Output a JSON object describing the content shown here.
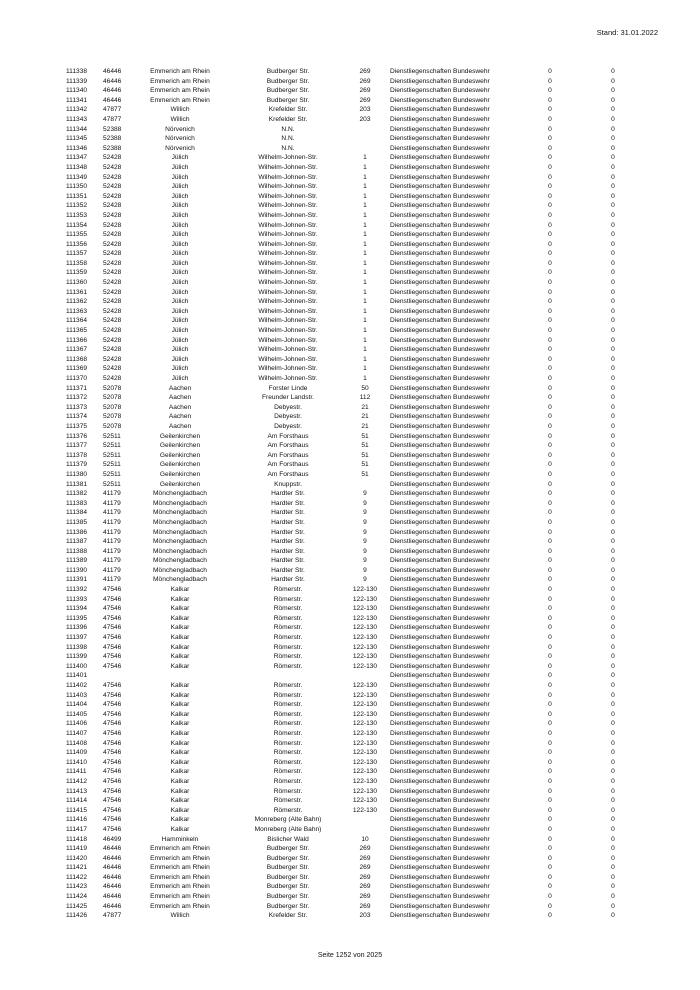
{
  "header": {
    "stand": "Stand: 31.01.2022"
  },
  "footer": {
    "page": "Seite 1252 von 2025"
  },
  "rows": [
    [
      "111338",
      "46446",
      "Emmerich am Rhein",
      "Budberger  Str.",
      "269",
      "Dienstliegenschaften Bundeswehr",
      "0",
      "0"
    ],
    [
      "111339",
      "46446",
      "Emmerich am Rhein",
      "Budberger  Str.",
      "269",
      "Dienstliegenschaften Bundeswehr",
      "0",
      "0"
    ],
    [
      "111340",
      "46446",
      "Emmerich am Rhein",
      "Budberger  Str.",
      "269",
      "Dienstliegenschaften Bundeswehr",
      "0",
      "0"
    ],
    [
      "111341",
      "46446",
      "Emmerich am Rhein",
      "Budberger  Str.",
      "269",
      "Dienstliegenschaften Bundeswehr",
      "0",
      "0"
    ],
    [
      "111342",
      "47877",
      "Willich",
      "Krefelder Str.",
      "203",
      "Dienstliegenschaften Bundeswehr",
      "0",
      "0"
    ],
    [
      "111343",
      "47877",
      "Willich",
      "Krefelder Str.",
      "203",
      "Dienstliegenschaften Bundeswehr",
      "0",
      "0"
    ],
    [
      "111344",
      "52388",
      "Nörvenich",
      "N.N.",
      "",
      "Dienstliegenschaften Bundeswehr",
      "0",
      "0"
    ],
    [
      "111345",
      "52388",
      "Nörvenich",
      "N.N.",
      "",
      "Dienstliegenschaften Bundeswehr",
      "0",
      "0"
    ],
    [
      "111346",
      "52388",
      "Nörvenich",
      "N.N.",
      "",
      "Dienstliegenschaften Bundeswehr",
      "0",
      "0"
    ],
    [
      "111347",
      "52428",
      "Jülich",
      "Wilhelm-Johnen-Str.",
      "1",
      "Dienstliegenschaften Bundeswehr",
      "0",
      "0"
    ],
    [
      "111348",
      "52428",
      "Jülich",
      "Wilhelm-Johnen-Str.",
      "1",
      "Dienstliegenschaften Bundeswehr",
      "0",
      "0"
    ],
    [
      "111349",
      "52428",
      "Jülich",
      "Wilhelm-Johnen-Str.",
      "1",
      "Dienstliegenschaften Bundeswehr",
      "0",
      "0"
    ],
    [
      "111350",
      "52428",
      "Jülich",
      "Wilhelm-Johnen-Str.",
      "1",
      "Dienstliegenschaften Bundeswehr",
      "0",
      "0"
    ],
    [
      "111351",
      "52428",
      "Jülich",
      "Wilhelm-Johnen-Str.",
      "1",
      "Dienstliegenschaften Bundeswehr",
      "0",
      "0"
    ],
    [
      "111352",
      "52428",
      "Jülich",
      "Wilhelm-Johnen-Str.",
      "1",
      "Dienstliegenschaften Bundeswehr",
      "0",
      "0"
    ],
    [
      "111353",
      "52428",
      "Jülich",
      "Wilhelm-Johnen-Str.",
      "1",
      "Dienstliegenschaften Bundeswehr",
      "0",
      "0"
    ],
    [
      "111354",
      "52428",
      "Jülich",
      "Wilhelm-Johnen-Str.",
      "1",
      "Dienstliegenschaften Bundeswehr",
      "0",
      "0"
    ],
    [
      "111355",
      "52428",
      "Jülich",
      "Wilhelm-Johnen-Str.",
      "1",
      "Dienstliegenschaften Bundeswehr",
      "0",
      "0"
    ],
    [
      "111356",
      "52428",
      "Jülich",
      "Wilhelm-Johnen-Str.",
      "1",
      "Dienstliegenschaften Bundeswehr",
      "0",
      "0"
    ],
    [
      "111357",
      "52428",
      "Jülich",
      "Wilhelm-Johnen-Str.",
      "1",
      "Dienstliegenschaften Bundeswehr",
      "0",
      "0"
    ],
    [
      "111358",
      "52428",
      "Jülich",
      "Wilhelm-Johnen-Str.",
      "1",
      "Dienstliegenschaften Bundeswehr",
      "0",
      "0"
    ],
    [
      "111359",
      "52428",
      "Jülich",
      "Wilhelm-Johnen-Str.",
      "1",
      "Dienstliegenschaften Bundeswehr",
      "0",
      "0"
    ],
    [
      "111360",
      "52428",
      "Jülich",
      "Wilhelm-Johnen-Str.",
      "1",
      "Dienstliegenschaften Bundeswehr",
      "0",
      "0"
    ],
    [
      "111361",
      "52428",
      "Jülich",
      "Wilhelm-Johnen-Str.",
      "1",
      "Dienstliegenschaften Bundeswehr",
      "0",
      "0"
    ],
    [
      "111362",
      "52428",
      "Jülich",
      "Wilhelm-Johnen-Str.",
      "1",
      "Dienstliegenschaften Bundeswehr",
      "0",
      "0"
    ],
    [
      "111363",
      "52428",
      "Jülich",
      "Wilhelm-Johnen-Str.",
      "1",
      "Dienstliegenschaften Bundeswehr",
      "0",
      "0"
    ],
    [
      "111364",
      "52428",
      "Jülich",
      "Wilhelm-Johnen-Str.",
      "1",
      "Dienstliegenschaften Bundeswehr",
      "0",
      "0"
    ],
    [
      "111365",
      "52428",
      "Jülich",
      "Wilhelm-Johnen-Str.",
      "1",
      "Dienstliegenschaften Bundeswehr",
      "0",
      "0"
    ],
    [
      "111366",
      "52428",
      "Jülich",
      "Wilhelm-Johnen-Str.",
      "1",
      "Dienstliegenschaften Bundeswehr",
      "0",
      "0"
    ],
    [
      "111367",
      "52428",
      "Jülich",
      "Wilhelm-Johnen-Str.",
      "1",
      "Dienstliegenschaften Bundeswehr",
      "0",
      "0"
    ],
    [
      "111368",
      "52428",
      "Jülich",
      "Wilhelm-Johnen-Str.",
      "1",
      "Dienstliegenschaften Bundeswehr",
      "0",
      "0"
    ],
    [
      "111369",
      "52428",
      "Jülich",
      "Wilhelm-Johnen-Str.",
      "1",
      "Dienstliegenschaften Bundeswehr",
      "0",
      "0"
    ],
    [
      "111370",
      "52428",
      "Jülich",
      "Wilhelm-Johnen-Str.",
      "1",
      "Dienstliegenschaften Bundeswehr",
      "0",
      "0"
    ],
    [
      "111371",
      "52078",
      "Aachen",
      "Forster Linde",
      "50",
      "Dienstliegenschaften Bundeswehr",
      "0",
      "0"
    ],
    [
      "111372",
      "52078",
      "Aachen",
      "Freunder Landstr.",
      "112",
      "Dienstliegenschaften Bundeswehr",
      "0",
      "0"
    ],
    [
      "111373",
      "52078",
      "Aachen",
      "Debyestr.",
      "21",
      "Dienstliegenschaften Bundeswehr",
      "0",
      "0"
    ],
    [
      "111374",
      "52078",
      "Aachen",
      "Debyestr.",
      "21",
      "Dienstliegenschaften Bundeswehr",
      "0",
      "0"
    ],
    [
      "111375",
      "52078",
      "Aachen",
      "Debyestr.",
      "21",
      "Dienstliegenschaften Bundeswehr",
      "0",
      "0"
    ],
    [
      "111376",
      "52511",
      "Geilenkirchen",
      "Am Forsthaus",
      "51",
      "Dienstliegenschaften Bundeswehr",
      "0",
      "0"
    ],
    [
      "111377",
      "52511",
      "Geilenkirchen",
      "Am Forsthaus",
      "51",
      "Dienstliegenschaften Bundeswehr",
      "0",
      "0"
    ],
    [
      "111378",
      "52511",
      "Geilenkirchen",
      "Am Forsthaus",
      "51",
      "Dienstliegenschaften Bundeswehr",
      "0",
      "0"
    ],
    [
      "111379",
      "52511",
      "Geilenkirchen",
      "Am Forsthaus",
      "51",
      "Dienstliegenschaften Bundeswehr",
      "0",
      "0"
    ],
    [
      "111380",
      "52511",
      "Geilenkirchen",
      "Am Forsthaus",
      "51",
      "Dienstliegenschaften Bundeswehr",
      "0",
      "0"
    ],
    [
      "111381",
      "52511",
      "Geilenkirchen",
      "Knuppstr.",
      "",
      "Dienstliegenschaften Bundeswehr",
      "0",
      "0"
    ],
    [
      "111382",
      "41179",
      "Mönchengladbach",
      "Hardter Str.",
      "9",
      "Dienstliegenschaften Bundeswehr",
      "0",
      "0"
    ],
    [
      "111383",
      "41179",
      "Mönchengladbach",
      "Hardter Str.",
      "9",
      "Dienstliegenschaften Bundeswehr",
      "0",
      "0"
    ],
    [
      "111384",
      "41179",
      "Mönchengladbach",
      "Hardter Str.",
      "9",
      "Dienstliegenschaften Bundeswehr",
      "0",
      "0"
    ],
    [
      "111385",
      "41179",
      "Mönchengladbach",
      "Hardter Str.",
      "9",
      "Dienstliegenschaften Bundeswehr",
      "0",
      "0"
    ],
    [
      "111386",
      "41179",
      "Mönchengladbach",
      "Hardter Str.",
      "9",
      "Dienstliegenschaften Bundeswehr",
      "0",
      "0"
    ],
    [
      "111387",
      "41179",
      "Mönchengladbach",
      "Hardter Str.",
      "9",
      "Dienstliegenschaften Bundeswehr",
      "0",
      "0"
    ],
    [
      "111388",
      "41179",
      "Mönchengladbach",
      "Hardter Str.",
      "9",
      "Dienstliegenschaften Bundeswehr",
      "0",
      "0"
    ],
    [
      "111389",
      "41179",
      "Mönchengladbach",
      "Hardter Str.",
      "9",
      "Dienstliegenschaften Bundeswehr",
      "0",
      "0"
    ],
    [
      "111390",
      "41179",
      "Mönchengladbach",
      "Hardter Str.",
      "9",
      "Dienstliegenschaften Bundeswehr",
      "0",
      "0"
    ],
    [
      "111391",
      "41179",
      "Mönchengladbach",
      "Hardter Str.",
      "9",
      "Dienstliegenschaften Bundeswehr",
      "0",
      "0"
    ],
    [
      "111392",
      "47546",
      "Kalkar",
      "Römerstr.",
      "122-130",
      "Dienstliegenschaften Bundeswehr",
      "0",
      "0"
    ],
    [
      "111393",
      "47546",
      "Kalkar",
      "Römerstr.",
      "122-130",
      "Dienstliegenschaften Bundeswehr",
      "0",
      "0"
    ],
    [
      "111394",
      "47546",
      "Kalkar",
      "Römerstr.",
      "122-130",
      "Dienstliegenschaften Bundeswehr",
      "0",
      "0"
    ],
    [
      "111395",
      "47546",
      "Kalkar",
      "Römerstr.",
      "122-130",
      "Dienstliegenschaften Bundeswehr",
      "0",
      "0"
    ],
    [
      "111396",
      "47546",
      "Kalkar",
      "Römerstr.",
      "122-130",
      "Dienstliegenschaften Bundeswehr",
      "0",
      "0"
    ],
    [
      "111397",
      "47546",
      "Kalkar",
      "Römerstr.",
      "122-130",
      "Dienstliegenschaften Bundeswehr",
      "0",
      "0"
    ],
    [
      "111398",
      "47546",
      "Kalkar",
      "Römerstr.",
      "122-130",
      "Dienstliegenschaften Bundeswehr",
      "0",
      "0"
    ],
    [
      "111399",
      "47546",
      "Kalkar",
      "Römerstr.",
      "122-130",
      "Dienstliegenschaften Bundeswehr",
      "0",
      "0"
    ],
    [
      "111400",
      "47546",
      "Kalkar",
      "Römerstr.",
      "122-130",
      "Dienstliegenschaften Bundeswehr",
      "0",
      "0"
    ],
    [
      "111401",
      "",
      "",
      "",
      "",
      "Dienstliegenschaften Bundeswehr",
      "0",
      "0"
    ],
    [
      "111402",
      "47546",
      "Kalkar",
      "Römerstr.",
      "122-130",
      "Dienstliegenschaften Bundeswehr",
      "0",
      "0"
    ],
    [
      "111403",
      "47546",
      "Kalkar",
      "Römerstr.",
      "122-130",
      "Dienstliegenschaften Bundeswehr",
      "0",
      "0"
    ],
    [
      "111404",
      "47546",
      "Kalkar",
      "Römerstr.",
      "122-130",
      "Dienstliegenschaften Bundeswehr",
      "0",
      "0"
    ],
    [
      "111405",
      "47546",
      "Kalkar",
      "Römerstr.",
      "122-130",
      "Dienstliegenschaften Bundeswehr",
      "0",
      "0"
    ],
    [
      "111406",
      "47546",
      "Kalkar",
      "Römerstr.",
      "122-130",
      "Dienstliegenschaften Bundeswehr",
      "0",
      "0"
    ],
    [
      "111407",
      "47546",
      "Kalkar",
      "Römerstr.",
      "122-130",
      "Dienstliegenschaften Bundeswehr",
      "0",
      "0"
    ],
    [
      "111408",
      "47546",
      "Kalkar",
      "Römerstr.",
      "122-130",
      "Dienstliegenschaften Bundeswehr",
      "0",
      "0"
    ],
    [
      "111409",
      "47546",
      "Kalkar",
      "Römerstr.",
      "122-130",
      "Dienstliegenschaften Bundeswehr",
      "0",
      "0"
    ],
    [
      "111410",
      "47546",
      "Kalkar",
      "Römerstr.",
      "122-130",
      "Dienstliegenschaften Bundeswehr",
      "0",
      "0"
    ],
    [
      "111411",
      "47546",
      "Kalkar",
      "Römerstr.",
      "122-130",
      "Dienstliegenschaften Bundeswehr",
      "0",
      "0"
    ],
    [
      "111412",
      "47546",
      "Kalkar",
      "Römerstr.",
      "122-130",
      "Dienstliegenschaften Bundeswehr",
      "0",
      "0"
    ],
    [
      "111413",
      "47546",
      "Kalkar",
      "Römerstr.",
      "122-130",
      "Dienstliegenschaften Bundeswehr",
      "0",
      "0"
    ],
    [
      "111414",
      "47546",
      "Kalkar",
      "Römerstr.",
      "122-130",
      "Dienstliegenschaften Bundeswehr",
      "0",
      "0"
    ],
    [
      "111415",
      "47546",
      "Kalkar",
      "Römerstr.",
      "122-130",
      "Dienstliegenschaften Bundeswehr",
      "0",
      "0"
    ],
    [
      "111416",
      "47546",
      "Kalkar",
      "Monreberg (Alte Bahn)",
      "",
      "Dienstliegenschaften Bundeswehr",
      "0",
      "0"
    ],
    [
      "111417",
      "47546",
      "Kalkar",
      "Monreberg (Alte Bahn)",
      "",
      "Dienstliegenschaften Bundeswehr",
      "0",
      "0"
    ],
    [
      "111418",
      "46499",
      "Hamminkeln",
      "Bislicher Wald",
      "10",
      "Dienstliegenschaften Bundeswehr",
      "0",
      "0"
    ],
    [
      "111419",
      "46446",
      "Emmerich am Rhein",
      "Budberger  Str.",
      "269",
      "Dienstliegenschaften Bundeswehr",
      "0",
      "0"
    ],
    [
      "111420",
      "46446",
      "Emmerich am Rhein",
      "Budberger  Str.",
      "269",
      "Dienstliegenschaften Bundeswehr",
      "0",
      "0"
    ],
    [
      "111421",
      "46446",
      "Emmerich am Rhein",
      "Budberger  Str.",
      "269",
      "Dienstliegenschaften Bundeswehr",
      "0",
      "0"
    ],
    [
      "111422",
      "46446",
      "Emmerich am Rhein",
      "Budberger  Str.",
      "269",
      "Dienstliegenschaften Bundeswehr",
      "0",
      "0"
    ],
    [
      "111423",
      "46446",
      "Emmerich am Rhein",
      "Budberger  Str.",
      "269",
      "Dienstliegenschaften Bundeswehr",
      "0",
      "0"
    ],
    [
      "111424",
      "46446",
      "Emmerich am Rhein",
      "Budberger  Str.",
      "269",
      "Dienstliegenschaften Bundeswehr",
      "0",
      "0"
    ],
    [
      "111425",
      "46446",
      "Emmerich am Rhein",
      "Budberger  Str.",
      "269",
      "Dienstliegenschaften Bundeswehr",
      "0",
      "0"
    ],
    [
      "111426",
      "47877",
      "Willich",
      "Krefelder Str.",
      "203",
      "Dienstliegenschaften Bundeswehr",
      "0",
      "0"
    ]
  ]
}
